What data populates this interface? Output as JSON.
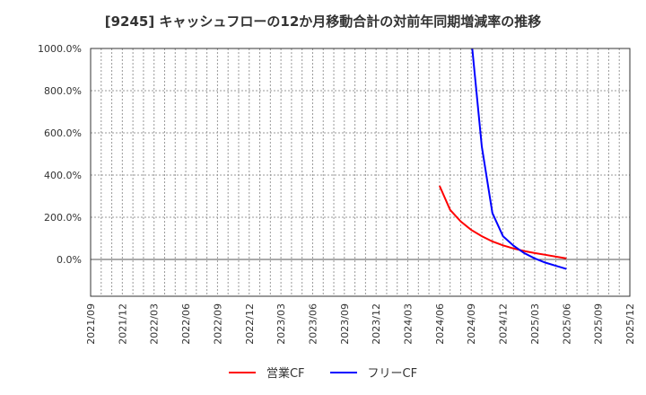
{
  "chart_data": {
    "type": "line",
    "title": "[9245]  キャッシュフローの12か月移動合計の対前年同期増減率の推移",
    "xlabel": "",
    "ylabel": "",
    "ylim": [
      -175,
      1000
    ],
    "grid": true,
    "legend_position": "bottom",
    "y_ticks": [
      "1000.0%",
      "800.0%",
      "600.0%",
      "400.0%",
      "200.0%",
      "0.0%"
    ],
    "y_tick_values": [
      1000,
      800,
      600,
      400,
      200,
      0
    ],
    "x_ticks": [
      "2021/09",
      "2021/12",
      "2022/03",
      "2022/06",
      "2022/09",
      "2022/12",
      "2023/03",
      "2023/06",
      "2023/09",
      "2023/12",
      "2024/03",
      "2024/06",
      "2024/09",
      "2024/12",
      "2025/03",
      "2025/06",
      "2025/09",
      "2025/12"
    ],
    "x": [
      "2024/06",
      "2024/07",
      "2024/08",
      "2024/09",
      "2024/10",
      "2024/11",
      "2024/12",
      "2025/01",
      "2025/02",
      "2025/03",
      "2025/04",
      "2025/05",
      "2025/06"
    ],
    "series": [
      {
        "name": "営業CF",
        "color": "#ff0000",
        "values": [
          349,
          235,
          180,
          140,
          110,
          85,
          67,
          52,
          40,
          30,
          22,
          13,
          5
        ]
      },
      {
        "name": "フリーCF",
        "color": "#0000ff",
        "values": [
          null,
          null,
          null,
          1050,
          535,
          220,
          110,
          65,
          30,
          5,
          -15,
          -30,
          -45
        ]
      }
    ]
  },
  "title": "[9245]  キャッシュフローの12か月移動合計の対前年同期増減率の推移",
  "legend": {
    "items": [
      {
        "label": "営業CF",
        "color": "#ff0000"
      },
      {
        "label": "フリーCF",
        "color": "#0000ff"
      }
    ]
  }
}
